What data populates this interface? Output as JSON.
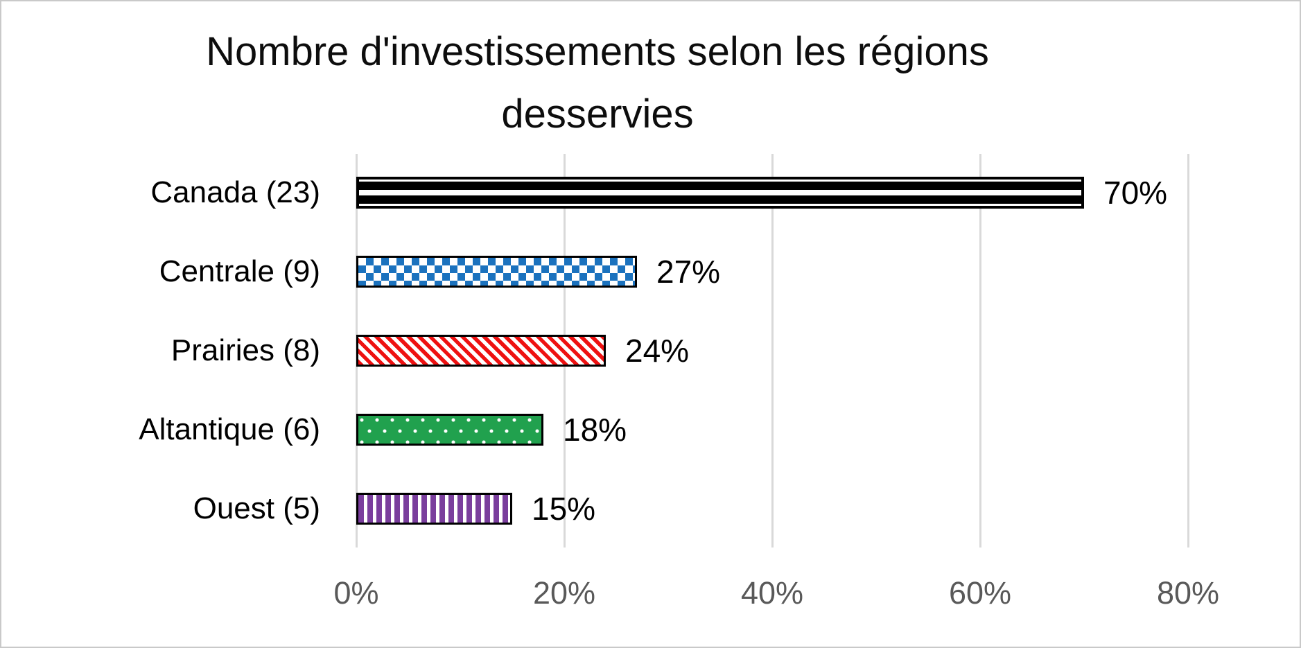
{
  "chart_data": {
    "type": "bar",
    "orientation": "horizontal",
    "title": "Nombre d'investissements selon les régions desservies",
    "categories": [
      "Canada (23)",
      "Centrale (9)",
      "Prairies (8)",
      "Altantique (6)",
      "Ouest (5)"
    ],
    "values": [
      70,
      27,
      24,
      18,
      15
    ],
    "counts": [
      23,
      9,
      8,
      6,
      5
    ],
    "value_labels": [
      "70%",
      "27%",
      "24%",
      "18%",
      "15%"
    ],
    "patterns": [
      "black-horizontal-stripes",
      "blue-checkerboard",
      "red-diagonal-stripes",
      "green-dots",
      "purple-vertical-stripes"
    ],
    "x_ticks": [
      "0%",
      "20%",
      "40%",
      "60%",
      "80%"
    ],
    "x_tick_values": [
      0,
      20,
      40,
      60,
      80
    ],
    "xlim": [
      0,
      80
    ],
    "grid": true,
    "legend": "none",
    "colors": {
      "stripe_black": "#000000",
      "checker_blue": "#1b72be",
      "stripe_red": "#ee1111",
      "dots_green": "#21a14e",
      "stripe_purple": "#7a3e9d",
      "gridline": "#d9d9d9",
      "axis_text": "#595959",
      "label_text": "#000000",
      "frame_border": "#c9c9c9",
      "background": "#ffffff"
    }
  }
}
